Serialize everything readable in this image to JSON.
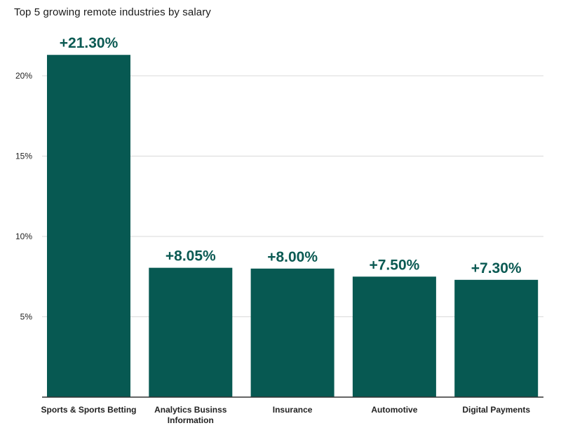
{
  "chart_data": {
    "type": "bar",
    "title": "Top 5 growing remote industries by salary",
    "categories": [
      [
        "Sports & Sports Betting"
      ],
      [
        "Analytics Businss",
        "Information"
      ],
      [
        "Insurance"
      ],
      [
        "Automotive"
      ],
      [
        "Digital Payments"
      ]
    ],
    "values": [
      21.3,
      8.05,
      8.0,
      7.5,
      7.3
    ],
    "data_labels": [
      "+21.30%",
      "+8.05%",
      "+8.00%",
      "+7.50%",
      "+7.30%"
    ],
    "yticks": [
      5,
      10,
      15,
      20
    ],
    "ytick_labels": [
      "5%",
      "10%",
      "15%",
      "20%"
    ],
    "ylim": [
      0,
      22
    ],
    "xlabel": "",
    "ylabel": "",
    "grid": true,
    "bar_color": "#075952",
    "label_color": "#0b5a53"
  }
}
